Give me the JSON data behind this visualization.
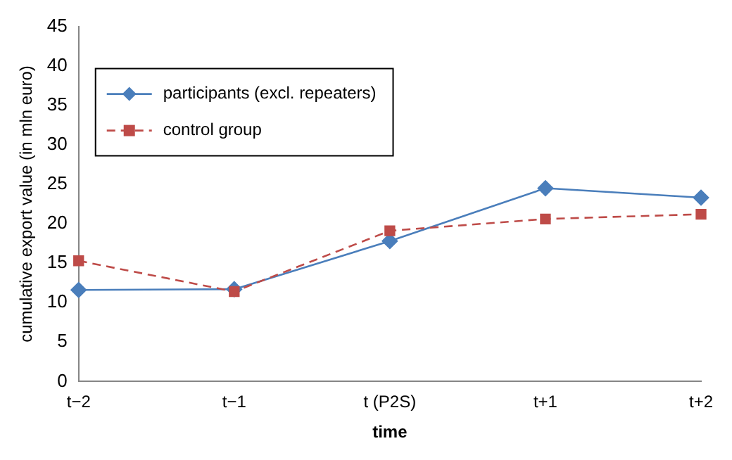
{
  "chart_data": {
    "type": "line",
    "xlabel": "time",
    "ylabel": "cumulative export value (in mln euro)",
    "categories": [
      "t−2",
      "t−1",
      "t (P2S)",
      "t+1",
      "t+2"
    ],
    "series": [
      {
        "name": "participants (excl. repeaters)",
        "color": "#4a7ebb",
        "marker": "diamond",
        "line_style": "solid",
        "values": [
          11.6,
          11.7,
          17.8,
          24.5,
          23.3
        ]
      },
      {
        "name": "control group",
        "color": "#be4b48",
        "marker": "square",
        "line_style": "dashed",
        "values": [
          15.3,
          11.4,
          19.1,
          20.6,
          21.2
        ]
      }
    ],
    "ylim": [
      0,
      45
    ],
    "yticks": [
      0,
      5,
      10,
      15,
      20,
      25,
      30,
      35,
      40,
      45
    ],
    "grid": false,
    "legend": "top left"
  }
}
